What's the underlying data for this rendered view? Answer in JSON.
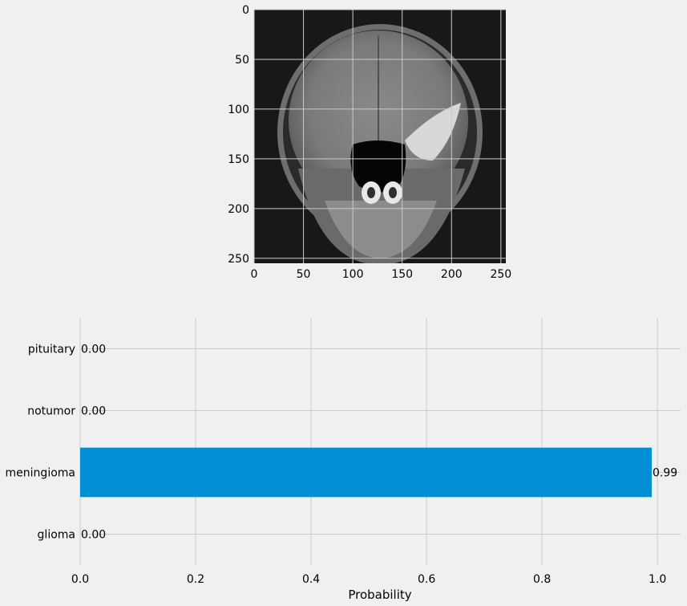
{
  "chart_data": [
    {
      "type": "image",
      "content": "brain MRI scan, coronal view",
      "x_ticks": [
        "0",
        "50",
        "100",
        "150",
        "200",
        "250"
      ],
      "y_ticks": [
        "0",
        "50",
        "100",
        "150",
        "200",
        "250"
      ],
      "xlim": [
        0,
        255
      ],
      "ylim": [
        255,
        0
      ],
      "grid": true
    },
    {
      "type": "bar",
      "orientation": "horizontal",
      "categories": [
        "glioma",
        "meningioma",
        "notumor",
        "pituitary"
      ],
      "values": [
        0.0,
        0.99,
        0.0,
        0.0
      ],
      "data_labels": [
        "0.00",
        "0.99",
        "0.00",
        "0.00"
      ],
      "xlabel": "Probability",
      "ylabel": "",
      "xlim": [
        0,
        1.04
      ],
      "x_ticks": [
        "0.0",
        "0.2",
        "0.4",
        "0.6",
        "0.8",
        "1.0"
      ],
      "grid": true,
      "bar_color": "#008fd5"
    }
  ]
}
